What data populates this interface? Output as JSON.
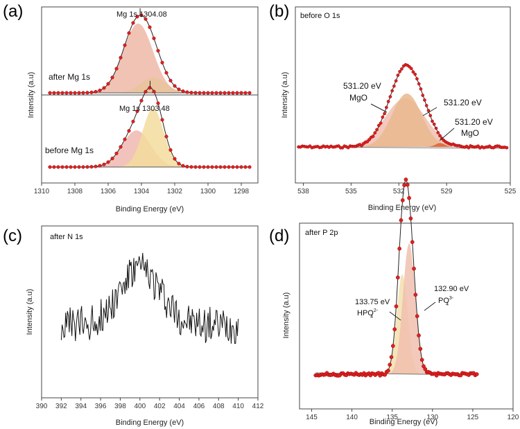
{
  "chart_data": [
    {
      "panel": "(a)",
      "type": "line",
      "xlabel": "Binding Energy (eV)",
      "ylabel": "Intensity (a.u)",
      "xlim": [
        1310,
        1297
      ],
      "xticks": [
        1310,
        1308,
        1306,
        1304,
        1302,
        1300,
        1298
      ],
      "series": [
        {
          "name": "after Mg 1s",
          "peak_label": "Mg 1s 1304.08",
          "peak_center": 1304.08,
          "components": [
            {
              "center": 1304.2,
              "fwhm": 2.1,
              "height": 1.0,
              "color": "#eeb9a8"
            },
            {
              "center": 1303.3,
              "fwhm": 1.8,
              "height": 0.22,
              "color": "#e8c49a"
            }
          ]
        },
        {
          "name": "before Mg 1s",
          "peak_label": "Mg 1s 1303.48",
          "peak_center": 1303.48,
          "components": [
            {
              "center": 1304.3,
              "fwhm": 2.0,
              "height": 0.55,
              "color": "#efb8b0"
            },
            {
              "center": 1303.3,
              "fwhm": 1.5,
              "height": 0.88,
              "color": "#f3dc9c"
            }
          ]
        }
      ]
    },
    {
      "panel": "(b)",
      "type": "line",
      "title": "before O 1s",
      "xlabel": "Binding Energy (eV)",
      "ylabel": "Intensity (a.u)",
      "xlim": [
        538.5,
        525
      ],
      "xticks": [
        538,
        535,
        532,
        529,
        525
      ],
      "components": [
        {
          "center": 531.6,
          "fwhm": 3.0,
          "height": 0.5,
          "color": "#f0c0b0"
        },
        {
          "center": 531.5,
          "fwhm": 2.2,
          "height": 0.55,
          "color": "#e9b98e"
        },
        {
          "center": 529.4,
          "fwhm": 0.7,
          "height": 0.04,
          "color": "#e06030"
        }
      ],
      "annotations": [
        "531.20 eV",
        "MgO",
        "531.20 eV",
        "531.20 eV",
        "MgO"
      ]
    },
    {
      "panel": "(c)",
      "type": "line",
      "title": "after N 1s",
      "xlabel": "Binding Energy (eV)",
      "ylabel": "Intensity (a.u)",
      "xlim": [
        390,
        412
      ],
      "xticks": [
        390,
        392,
        394,
        396,
        398,
        400,
        402,
        404,
        406,
        408,
        410,
        412
      ],
      "x_range": [
        392,
        410
      ],
      "peak": {
        "center": 400,
        "fwhm": 5,
        "height": 0.45
      },
      "noise": 0.3
    },
    {
      "panel": "(d)",
      "type": "line",
      "title": "after P 2p",
      "xlabel": "Binding Energy (eV)",
      "ylabel": "Intensity (a.u)",
      "xlim": [
        146.5,
        120
      ],
      "xticks": [
        145,
        140,
        135,
        130,
        125,
        120
      ],
      "components": [
        {
          "center": 133.75,
          "fwhm": 1.6,
          "height": 0.55,
          "color": "#f3dfae"
        },
        {
          "center": 132.9,
          "fwhm": 1.8,
          "height": 0.72,
          "color": "#f0bfae"
        }
      ],
      "annotations": [
        {
          "energy": "133.75 eV",
          "species": "HPO",
          "sub": "4",
          "sup": "2-"
        },
        {
          "energy": "132.90 eV",
          "species": "PO",
          "sub": "4",
          "sup": "3-"
        }
      ]
    }
  ]
}
